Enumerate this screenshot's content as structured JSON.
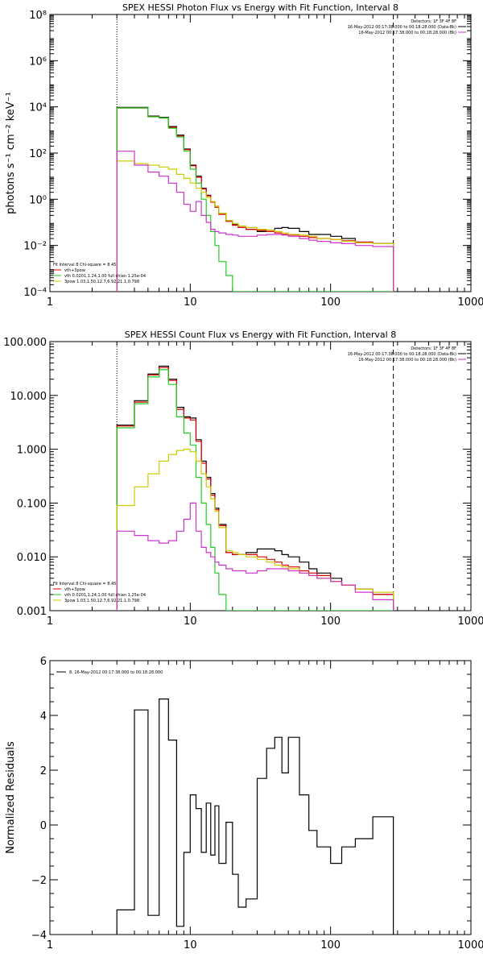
{
  "chart_data": [
    {
      "type": "line",
      "title": "SPEX HESSI Photon Flux vs Energy with Fit Function, Interval 8",
      "ylabel": "photons s⁻¹ cm⁻² keV⁻¹",
      "xlabel": "",
      "xscale": "log",
      "yscale": "log",
      "xlim": [
        1,
        1000
      ],
      "ylim": [
        0.0001,
        100000000
      ],
      "xticks": [
        1,
        10,
        100,
        1000
      ],
      "xtick_labels": [
        "1",
        "10",
        "100",
        "1000"
      ],
      "yticks": [
        0.0001,
        0.01,
        1,
        100,
        10000,
        1000000,
        100000000
      ],
      "ytick_labels": [
        "10⁻⁴",
        "10⁻²",
        "10⁰",
        "10²",
        "10⁴",
        "10⁶",
        "10⁸"
      ],
      "vlines": [
        {
          "x": 3,
          "style": "dotted",
          "color": "#000000"
        },
        {
          "x": 280,
          "style": "dashed",
          "color": "#000000"
        }
      ],
      "legend_tr": [
        {
          "text": "Detectors: 1F 3F 4F 8F",
          "color": "#000000"
        },
        {
          "text": "16-May-2012 00:17:38.000 to 00:18:28.000 (Data-Bk)",
          "color": "#000000"
        },
        {
          "text": "16-May-2012 00:17:38.000 to 00:18:28.000 (Bk)",
          "color": "#cc33cc"
        }
      ],
      "legend_bl": [
        {
          "text": "Fit Interval 8   Chi-square = 8.45",
          "color": "#000000"
        },
        {
          "text": "vth+3pow",
          "color": "#dd0000"
        },
        {
          "text": "vth 0.0201,1.24,1.00  full chian 1.25e-04",
          "color": "#22cc22"
        },
        {
          "text": "3pow 1.03,1.50,12.7,6.92,21.1,0.798",
          "color": "#cccc00"
        }
      ],
      "edges": [
        3,
        4,
        5,
        6,
        7,
        8,
        9,
        10,
        11,
        12,
        13,
        14,
        15,
        16,
        18,
        20,
        22,
        25,
        30,
        35,
        40,
        45,
        50,
        60,
        70,
        80,
        100,
        120,
        150,
        200,
        280
      ],
      "series": [
        {
          "color": "#000000",
          "values": [
            9500,
            9500,
            4000,
            3500,
            1400,
            600,
            150,
            30,
            10,
            3,
            1.5,
            0.8,
            0.5,
            0.25,
            0.12,
            0.08,
            0.06,
            0.05,
            0.04,
            0.045,
            0.055,
            0.06,
            0.055,
            0.04,
            0.03,
            0.03,
            0.025,
            0.02,
            0.014,
            0.012
          ]
        },
        {
          "color": "#dd0000",
          "values": [
            9000,
            9000,
            3800,
            3300,
            1300,
            550,
            140,
            28,
            9,
            2.8,
            1.4,
            0.75,
            0.45,
            0.22,
            0.11,
            0.075,
            0.06,
            0.05,
            0.045,
            0.04,
            0.035,
            0.03,
            0.028,
            0.025,
            0.022,
            0.02,
            0.018,
            0.016,
            0.014,
            0.012
          ]
        },
        {
          "color": "#22cc22",
          "values": [
            9000,
            9000,
            3700,
            3300,
            1200,
            500,
            120,
            20,
            5,
            1,
            0.2,
            0.04,
            0.01,
            0.002,
            0.0005,
            0.0001,
            0.0001,
            0.0001,
            0.0001,
            0.0001,
            0.0001,
            0.0001,
            0.0001,
            0.0001,
            0.0001,
            0.0001,
            0.0001,
            0.0001,
            0.0001,
            0.0001
          ]
        },
        {
          "color": "#cccc00",
          "values": [
            45,
            35,
            30,
            25,
            20,
            12,
            8,
            5,
            3,
            2,
            1.2,
            0.8,
            0.5,
            0.25,
            0.12,
            0.09,
            0.07,
            0.06,
            0.05,
            0.045,
            0.04,
            0.035,
            0.03,
            0.028,
            0.025,
            0.02,
            0.018,
            0.015,
            0.013,
            0.012
          ]
        },
        {
          "color": "#cc33cc",
          "values": [
            120,
            30,
            15,
            10,
            5,
            2,
            0.6,
            0.3,
            0.8,
            0.2,
            0.1,
            0.05,
            0.04,
            0.035,
            0.03,
            0.028,
            0.025,
            0.025,
            0.028,
            0.03,
            0.03,
            0.028,
            0.025,
            0.02,
            0.017,
            0.015,
            0.013,
            0.012,
            0.01,
            0.009
          ]
        }
      ]
    },
    {
      "type": "line",
      "title": "SPEX HESSI Count Flux vs Energy with Fit Function, Interval 8",
      "ylabel": "",
      "xlabel": "",
      "xscale": "log",
      "yscale": "log",
      "xlim": [
        1,
        1000
      ],
      "ylim": [
        0.001,
        100
      ],
      "xticks": [
        1,
        10,
        100,
        1000
      ],
      "xtick_labels": [
        "1",
        "10",
        "100",
        "1000"
      ],
      "yticks": [
        0.001,
        0.01,
        0.1,
        1,
        10,
        100
      ],
      "ytick_labels": [
        "0.001",
        "0.010",
        "0.100",
        "1.000",
        "10.000",
        "100.000"
      ],
      "vlines": [
        {
          "x": 3,
          "style": "dotted",
          "color": "#000000"
        },
        {
          "x": 280,
          "style": "dashed",
          "color": "#000000"
        }
      ],
      "legend_tr": [
        {
          "text": "Detectors: 1F 3F 4F 8F",
          "color": "#000000"
        },
        {
          "text": "16-May-2012 00:17:38.000 to 00:18:28.000 (Data-Bk)",
          "color": "#000000"
        },
        {
          "text": "16-May-2012 00:17:38.000 to 00:18:28.000 (Bk)",
          "color": "#cc33cc"
        }
      ],
      "legend_bl": [
        {
          "text": "Fit Interval 8   Chi-square = 8.45",
          "color": "#000000"
        },
        {
          "text": "vth+3pow",
          "color": "#dd0000"
        },
        {
          "text": "vth 0.0201,1.24,1.00  full chian 1.25e-04",
          "color": "#22cc22"
        },
        {
          "text": "3pow 1.03,1.50,12.7,6.92,21.1,0.798",
          "color": "#cccc00"
        }
      ],
      "edges": [
        3,
        4,
        5,
        6,
        7,
        8,
        9,
        10,
        11,
        12,
        13,
        14,
        15,
        16,
        18,
        20,
        22,
        25,
        30,
        35,
        40,
        45,
        50,
        60,
        70,
        80,
        100,
        120,
        150,
        200,
        280
      ],
      "series": [
        {
          "color": "#000000",
          "values": [
            2.8,
            8,
            25,
            35,
            20,
            6,
            4,
            3.8,
            1.5,
            0.6,
            0.3,
            0.15,
            0.08,
            0.04,
            0.012,
            0.011,
            0.011,
            0.012,
            0.014,
            0.014,
            0.013,
            0.011,
            0.01,
            0.008,
            0.006,
            0.005,
            0.004,
            0.003,
            0.0025,
            0.002
          ]
        },
        {
          "color": "#dd0000",
          "values": [
            2.7,
            7.5,
            24,
            33,
            19,
            5.5,
            3.8,
            3.5,
            1.4,
            0.55,
            0.28,
            0.14,
            0.075,
            0.038,
            0.012,
            0.011,
            0.011,
            0.011,
            0.01,
            0.009,
            0.008,
            0.007,
            0.0065,
            0.0055,
            0.005,
            0.0045,
            0.0035,
            0.003,
            0.0025,
            0.002
          ]
        },
        {
          "color": "#22cc22",
          "values": [
            2.5,
            7,
            22,
            30,
            16,
            4,
            2,
            1.2,
            0.3,
            0.1,
            0.04,
            0.015,
            0.005,
            0.002,
            0.001,
            0.001,
            0.001,
            0.001,
            0.001,
            0.001,
            0.001,
            0.001,
            0.001,
            0.001,
            0.001,
            0.001,
            0.001,
            0.001,
            0.001,
            0.001
          ]
        },
        {
          "color": "#cccc00",
          "values": [
            0.09,
            0.2,
            0.35,
            0.6,
            0.8,
            0.95,
            1,
            0.9,
            0.6,
            0.35,
            0.2,
            0.12,
            0.07,
            0.035,
            0.013,
            0.012,
            0.011,
            0.01,
            0.009,
            0.008,
            0.007,
            0.0065,
            0.006,
            0.005,
            0.0045,
            0.004,
            0.0035,
            0.003,
            0.0025,
            0.0022
          ]
        },
        {
          "color": "#cc33cc",
          "values": [
            0.03,
            0.025,
            0.02,
            0.018,
            0.02,
            0.03,
            0.05,
            0.1,
            0.03,
            0.015,
            0.012,
            0.01,
            0.008,
            0.007,
            0.006,
            0.0055,
            0.0055,
            0.005,
            0.0055,
            0.006,
            0.006,
            0.006,
            0.0055,
            0.005,
            0.0045,
            0.004,
            0.0035,
            0.003,
            0.0022,
            0.0016
          ]
        }
      ]
    },
    {
      "type": "line",
      "title": "",
      "ylabel": "Normalized Residuals",
      "xlabel": "",
      "xscale": "log",
      "yscale": "linear",
      "xlim": [
        1,
        1000
      ],
      "ylim": [
        -4,
        6
      ],
      "xticks": [
        1,
        10,
        100,
        1000
      ],
      "xtick_labels": [
        "1",
        "10",
        "100",
        "1000"
      ],
      "yticks": [
        -4,
        -2,
        0,
        2,
        4,
        6
      ],
      "ytick_labels": [
        "−4",
        "−2",
        "0",
        "2",
        "4",
        "6"
      ],
      "vlines": [],
      "legend_tl": [
        {
          "text": "8. 16-May-2012 00:17:38.000 to 00:18:28.000",
          "color": "#000000"
        }
      ],
      "edges": [
        3,
        4,
        5,
        6,
        7,
        8,
        9,
        10,
        11,
        12,
        13,
        14,
        15,
        16,
        18,
        20,
        22,
        25,
        30,
        35,
        40,
        45,
        50,
        60,
        70,
        80,
        100,
        120,
        150,
        200,
        280
      ],
      "series": [
        {
          "color": "#000000",
          "values": [
            -3.1,
            4.2,
            -3.3,
            4.6,
            3.1,
            -3.7,
            -1.0,
            1.1,
            0.6,
            -1.0,
            0.8,
            -1.1,
            0.7,
            -1.4,
            0.1,
            -1.8,
            -3.0,
            -2.7,
            1.7,
            2.8,
            3.2,
            1.9,
            3.2,
            1.1,
            -0.2,
            -0.8,
            -1.4,
            -0.8,
            -0.5,
            0.3
          ]
        }
      ]
    }
  ]
}
